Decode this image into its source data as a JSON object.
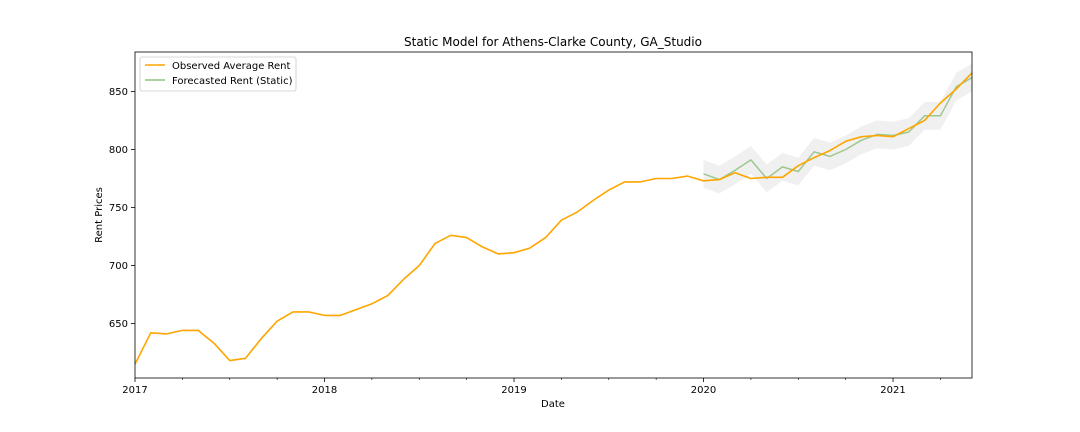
{
  "chart_data": {
    "type": "line",
    "title": "Static Model for Athens-Clarke County, GA_Studio",
    "xlabel": "Date",
    "ylabel": "Rent Prices",
    "xlim": [
      "2017-01",
      "2021-06"
    ],
    "ylim": [
      603,
      884
    ],
    "x_ticks": [
      {
        "label": "2017",
        "value": "2017-01"
      },
      {
        "label": "2018",
        "value": "2018-01"
      },
      {
        "label": "2019",
        "value": "2019-01"
      },
      {
        "label": "2020",
        "value": "2020-01"
      },
      {
        "label": "2021",
        "value": "2021-01"
      }
    ],
    "y_ticks": [
      650,
      700,
      750,
      800,
      850
    ],
    "grid": false,
    "legend": {
      "position": "top-left"
    },
    "series": [
      {
        "name": "Observed Average Rent",
        "color": "#ffa500",
        "x": [
          "2017-01",
          "2017-02",
          "2017-03",
          "2017-04",
          "2017-05",
          "2017-06",
          "2017-07",
          "2017-08",
          "2017-09",
          "2017-10",
          "2017-11",
          "2017-12",
          "2018-01",
          "2018-02",
          "2018-03",
          "2018-04",
          "2018-05",
          "2018-06",
          "2018-07",
          "2018-08",
          "2018-09",
          "2018-10",
          "2018-11",
          "2018-12",
          "2019-01",
          "2019-02",
          "2019-03",
          "2019-04",
          "2019-05",
          "2019-06",
          "2019-07",
          "2019-08",
          "2019-09",
          "2019-10",
          "2019-11",
          "2019-12",
          "2020-01",
          "2020-02",
          "2020-03",
          "2020-04",
          "2020-05",
          "2020-06",
          "2020-07",
          "2020-08",
          "2020-09",
          "2020-10",
          "2020-11",
          "2020-12",
          "2021-01",
          "2021-02",
          "2021-03",
          "2021-04",
          "2021-05",
          "2021-06"
        ],
        "values": [
          615,
          642,
          641,
          644,
          644,
          633,
          618,
          620,
          637,
          652,
          660,
          660,
          657,
          657,
          662,
          667,
          674,
          688,
          700,
          719,
          726,
          724,
          716,
          710,
          711,
          715,
          724,
          739,
          746,
          756,
          765,
          772,
          772,
          775,
          775,
          777,
          773,
          774,
          780,
          775,
          776,
          776,
          786,
          793,
          799,
          807,
          811,
          812,
          811,
          818,
          825,
          840,
          852,
          866
        ]
      },
      {
        "name": "Forecasted Rent (Static)",
        "color": "#8fbf7f",
        "x": [
          "2020-01",
          "2020-02",
          "2020-03",
          "2020-04",
          "2020-05",
          "2020-06",
          "2020-07",
          "2020-08",
          "2020-09",
          "2020-10",
          "2020-11",
          "2020-12",
          "2021-01",
          "2021-02",
          "2021-03",
          "2021-04",
          "2021-05",
          "2021-06"
        ],
        "values": [
          779,
          774,
          782,
          791,
          775,
          785,
          781,
          798,
          794,
          800,
          808,
          813,
          812,
          815,
          829,
          829,
          854,
          862
        ],
        "lower": [
          767,
          762,
          770,
          779,
          763,
          773,
          769,
          786,
          782,
          788,
          796,
          801,
          800,
          803,
          817,
          817,
          842,
          850
        ],
        "upper": [
          791,
          786,
          794,
          803,
          787,
          797,
          793,
          810,
          806,
          812,
          820,
          825,
          824,
          827,
          841,
          841,
          866,
          874
        ]
      }
    ]
  }
}
